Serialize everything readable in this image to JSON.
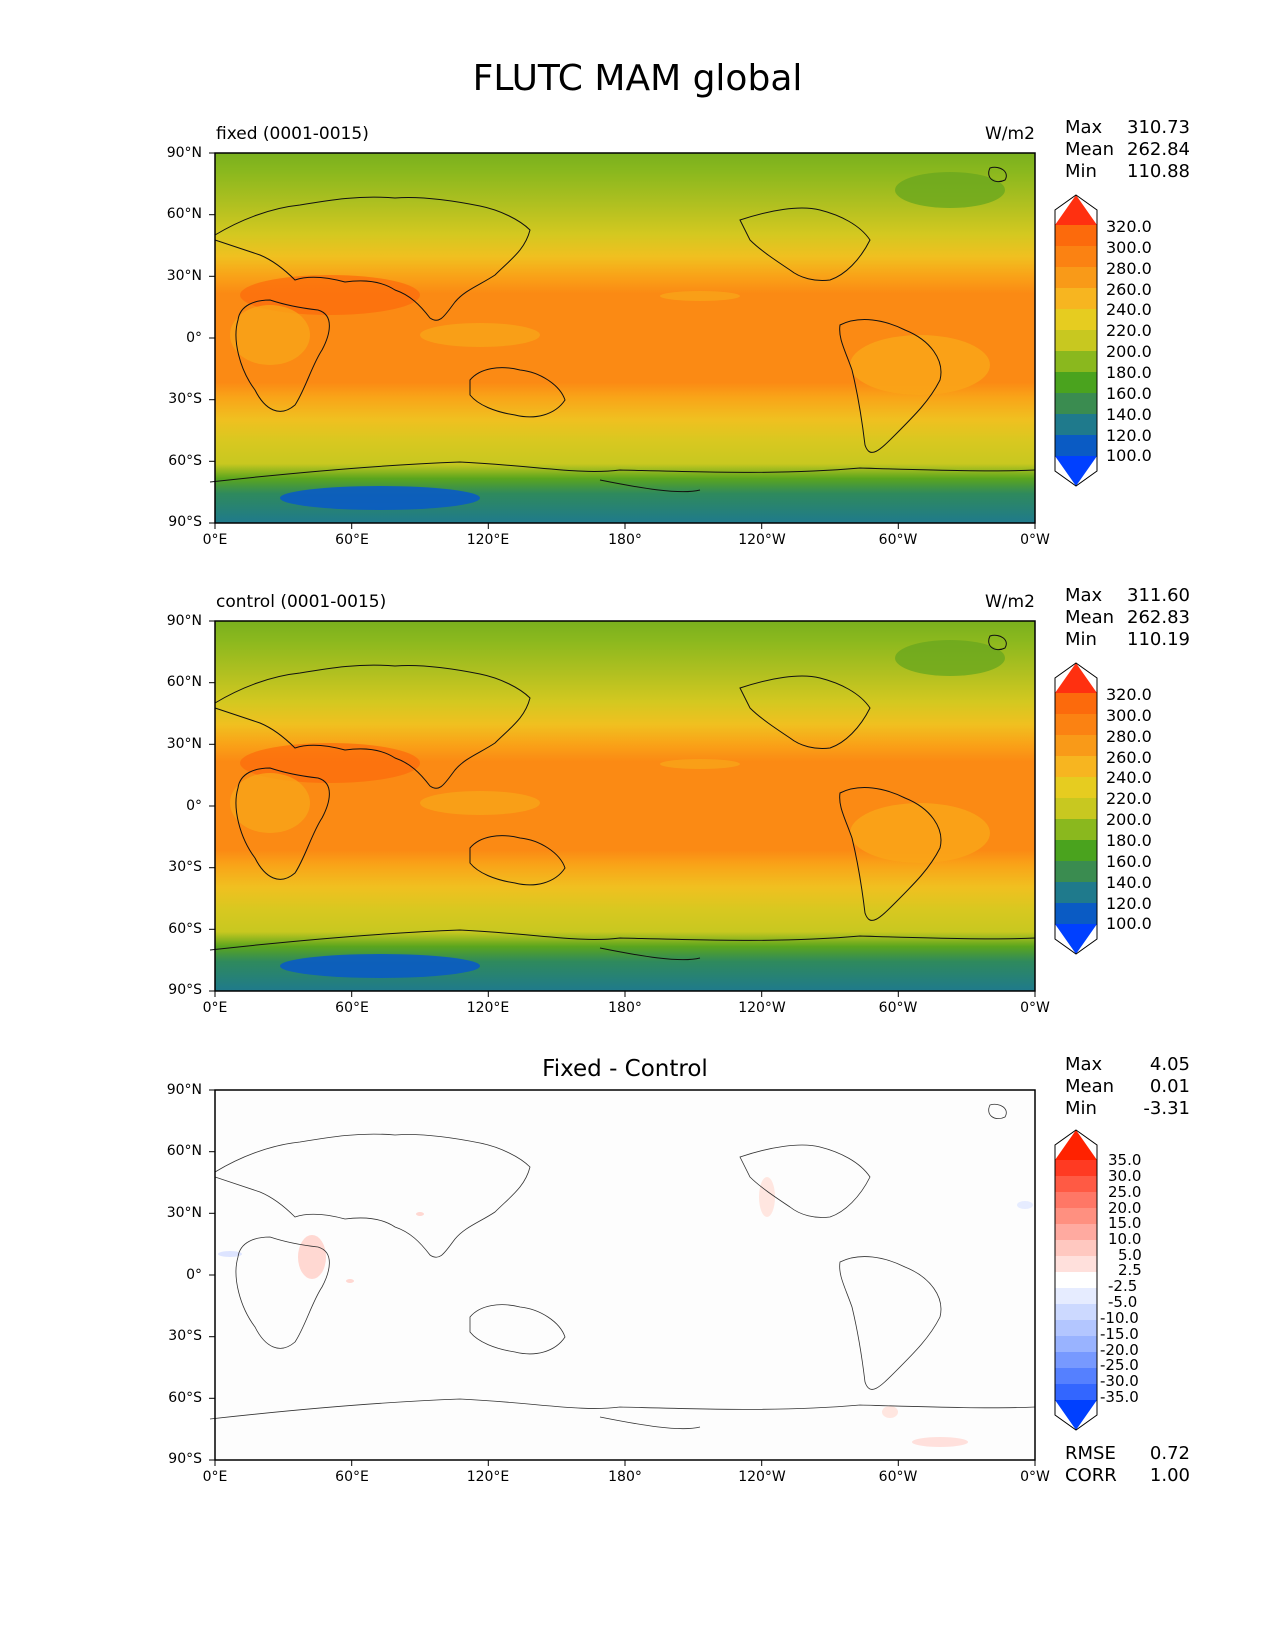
{
  "title": "FLUTC MAM global",
  "units": "W/m2",
  "lat_ticks": [
    "90°N",
    "60°N",
    "30°N",
    "0°",
    "30°S",
    "60°S",
    "90°S"
  ],
  "lon_ticks": [
    "0°E",
    "60°E",
    "120°E",
    "180°",
    "120°W",
    "60°W",
    "0°W"
  ],
  "panels": [
    {
      "label": "fixed (0001-0015)",
      "units": "W/m2",
      "stats": {
        "max_label": "Max",
        "max": "310.73",
        "mean_label": "Mean",
        "mean": "262.84",
        "min_label": "Min",
        "min": "110.88"
      },
      "colorbar_ticks": [
        "320.0",
        "300.0",
        "280.0",
        "260.0",
        "240.0",
        "220.0",
        "200.0",
        "180.0",
        "160.0",
        "140.0",
        "120.0",
        "100.0"
      ]
    },
    {
      "label": "control (0001-0015)",
      "units": "W/m2",
      "stats": {
        "max_label": "Max",
        "max": "311.60",
        "mean_label": "Mean",
        "mean": "262.83",
        "min_label": "Min",
        "min": "110.19"
      },
      "colorbar_ticks": [
        "320.0",
        "300.0",
        "280.0",
        "260.0",
        "240.0",
        "220.0",
        "200.0",
        "180.0",
        "160.0",
        "140.0",
        "120.0",
        "100.0"
      ]
    },
    {
      "title": "Fixed - Control",
      "stats": {
        "max_label": "Max",
        "max": "4.05",
        "mean_label": "Mean",
        "mean": "0.01",
        "min_label": "Min",
        "min": "-3.31"
      },
      "colorbar_ticks": [
        "35.0",
        "30.0",
        "25.0",
        "20.0",
        "15.0",
        "10.0",
        "5.0",
        "2.5",
        "-2.5",
        "-5.0",
        "-10.0",
        "-15.0",
        "-20.0",
        "-25.0",
        "-30.0",
        "-35.0"
      ],
      "rmse_label": "RMSE",
      "rmse": "0.72",
      "corr_label": "CORR",
      "corr": "1.00"
    }
  ],
  "colors": {
    "model_scale": [
      "#0040ff",
      "#0a5bc4",
      "#1f7a8c",
      "#3a8c50",
      "#4aa31e",
      "#8ab81e",
      "#c8c820",
      "#e6cc20",
      "#f7b520",
      "#f99a18",
      "#fb8212",
      "#fc6a0c",
      "#ff3010"
    ],
    "diff_scale": [
      "#0040ff",
      "#3366ff",
      "#5580ff",
      "#7799ff",
      "#99b3ff",
      "#b3c6ff",
      "#ccd9ff",
      "#e6ecff",
      "#ffffff",
      "#ffe0dc",
      "#ffc8c0",
      "#ffaaa0",
      "#ff9080",
      "#ff7766",
      "#ff5a44",
      "#ff3a22",
      "#ff2200"
    ]
  }
}
